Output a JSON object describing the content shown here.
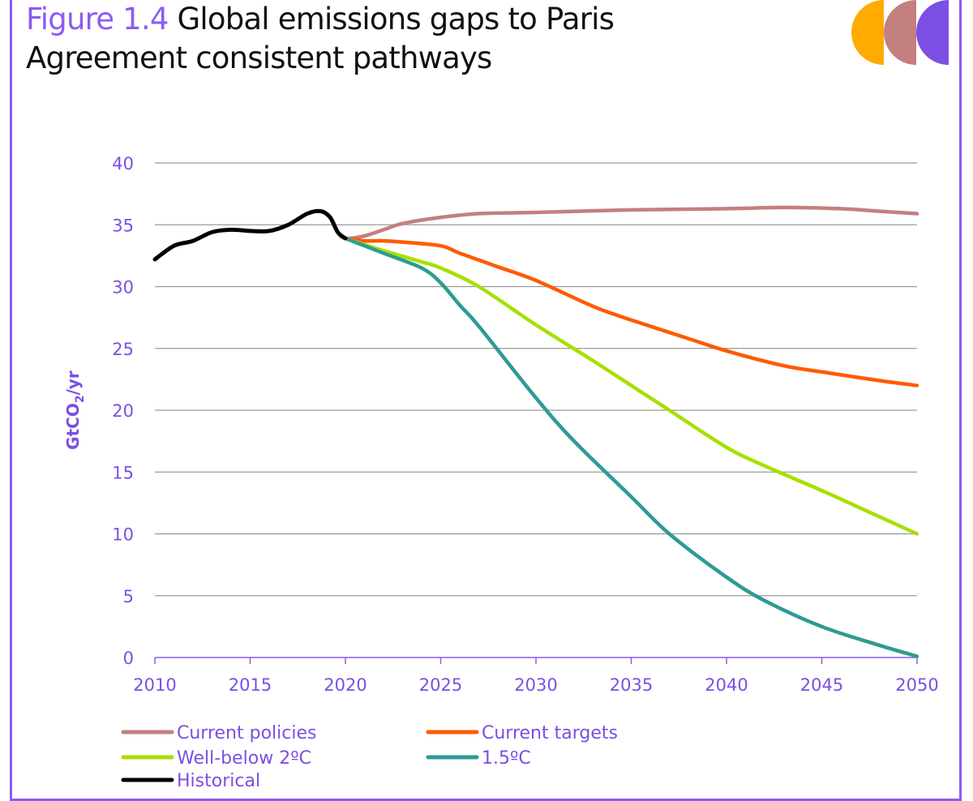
{
  "header": {
    "figure_label": "Figure 1.4",
    "title_line1": "Global emissions gaps to Paris",
    "title_line2": "Agreement consistent pathways"
  },
  "logo": {
    "name": "ccc-logo",
    "colors": [
      "#ffab00",
      "#c47f7f",
      "#7b4fe3"
    ]
  },
  "colors": {
    "frame": "#8d5bf2",
    "axis_text": "#7b4fe3",
    "grid": "#999999"
  },
  "chart_data": {
    "type": "line",
    "title": "Global emissions gaps to Paris Agreement consistent pathways",
    "xlabel": "",
    "ylabel_main": "GtCO",
    "ylabel_sub": "2",
    "ylabel_suffix": "/yr",
    "xlim": [
      2010,
      2050
    ],
    "ylim": [
      0,
      40
    ],
    "x_ticks": [
      "2010",
      "2015",
      "2020",
      "2025",
      "2030",
      "2035",
      "2040",
      "2045",
      "2050"
    ],
    "y_ticks": [
      "0",
      "5",
      "10",
      "15",
      "20",
      "25",
      "30",
      "35",
      "40"
    ],
    "grid": "horizontal",
    "legend_position": "bottom",
    "series": [
      {
        "name": "Current policies",
        "color": "#c47f7f",
        "points": [
          [
            2019.2,
            35.6
          ],
          [
            2019.6,
            34.4
          ],
          [
            2020,
            33.9
          ],
          [
            2021,
            34.1
          ],
          [
            2022,
            34.6
          ],
          [
            2023,
            35.1
          ],
          [
            2025,
            35.6
          ],
          [
            2027,
            35.9
          ],
          [
            2030,
            36.0
          ],
          [
            2035,
            36.2
          ],
          [
            2040,
            36.3
          ],
          [
            2043,
            36.4
          ],
          [
            2046,
            36.3
          ],
          [
            2048,
            36.1
          ],
          [
            2050,
            35.9
          ]
        ]
      },
      {
        "name": "Current targets",
        "color": "#ff5a00",
        "points": [
          [
            2020,
            33.9
          ],
          [
            2021,
            33.7
          ],
          [
            2022,
            33.7
          ],
          [
            2023,
            33.6
          ],
          [
            2025,
            33.3
          ],
          [
            2026,
            32.7
          ],
          [
            2028,
            31.6
          ],
          [
            2030,
            30.5
          ],
          [
            2033,
            28.4
          ],
          [
            2035,
            27.3
          ],
          [
            2038,
            25.8
          ],
          [
            2040,
            24.8
          ],
          [
            2043,
            23.6
          ],
          [
            2045,
            23.1
          ],
          [
            2048,
            22.4
          ],
          [
            2050,
            22.0
          ]
        ]
      },
      {
        "name": "Well-below 2ºC",
        "color": "#a6e000",
        "points": [
          [
            2020,
            33.9
          ],
          [
            2022,
            32.9
          ],
          [
            2024,
            32.0
          ],
          [
            2025,
            31.5
          ],
          [
            2027,
            30.0
          ],
          [
            2030,
            26.9
          ],
          [
            2033,
            24.0
          ],
          [
            2035,
            22.0
          ],
          [
            2037,
            20.0
          ],
          [
            2040,
            17.0
          ],
          [
            2042,
            15.5
          ],
          [
            2045,
            13.5
          ],
          [
            2048,
            11.4
          ],
          [
            2050,
            10.0
          ]
        ]
      },
      {
        "name": "1.5ºC",
        "color": "#2e9b93",
        "points": [
          [
            2020,
            33.9
          ],
          [
            2022,
            32.7
          ],
          [
            2024,
            31.5
          ],
          [
            2025,
            30.3
          ],
          [
            2026,
            28.5
          ],
          [
            2027,
            26.8
          ],
          [
            2030,
            21.0
          ],
          [
            2032,
            17.5
          ],
          [
            2035,
            13.0
          ],
          [
            2037,
            10.0
          ],
          [
            2040,
            6.5
          ],
          [
            2042,
            4.6
          ],
          [
            2045,
            2.5
          ],
          [
            2048,
            1.0
          ],
          [
            2050,
            0.1
          ]
        ]
      },
      {
        "name": "Historical",
        "color": "#000000",
        "points": [
          [
            2010,
            32.2
          ],
          [
            2011,
            33.3
          ],
          [
            2012,
            33.7
          ],
          [
            2013,
            34.4
          ],
          [
            2014,
            34.6
          ],
          [
            2015,
            34.5
          ],
          [
            2016,
            34.5
          ],
          [
            2017,
            35.0
          ],
          [
            2018,
            35.9
          ],
          [
            2018.7,
            36.1
          ],
          [
            2019.2,
            35.6
          ],
          [
            2019.6,
            34.4
          ],
          [
            2020,
            33.9
          ]
        ]
      }
    ],
    "legend_order": [
      0,
      1,
      2,
      3,
      4
    ]
  }
}
